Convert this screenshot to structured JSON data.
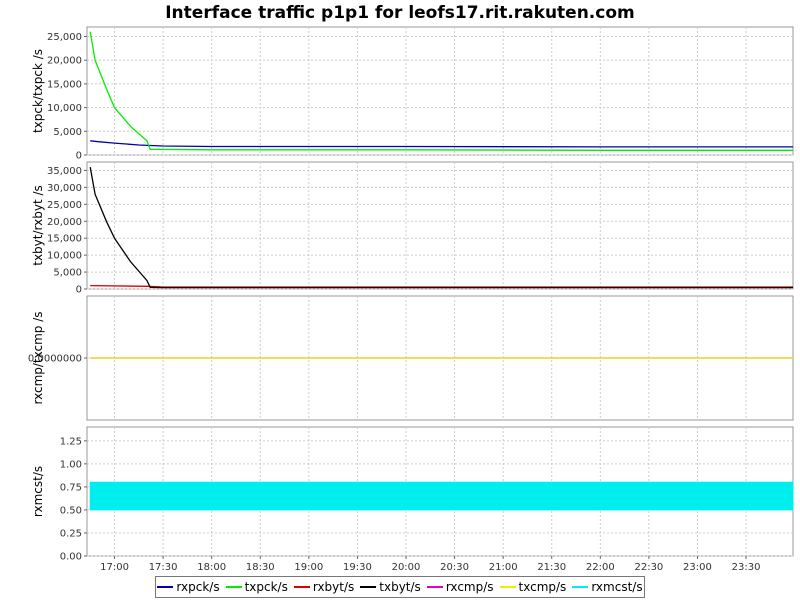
{
  "title": "Interface traffic p1p1 for leofs17.rit.rakuten.com",
  "colors": {
    "rxpck": "#0000aa",
    "txpck": "#00ee00",
    "rxbyt": "#dd0000",
    "txbyt": "#000000",
    "rxcmp": "#dd00dd",
    "txcmp": "#eeee00",
    "rxmcst": "#00eeee"
  },
  "chart_data": [
    {
      "type": "line",
      "ylabel": "txpck/txpck /s",
      "ylim": [
        0,
        27000
      ],
      "yticks": [
        0,
        5000,
        10000,
        15000,
        20000,
        25000
      ],
      "ytick_labels": [
        "0",
        "5,000",
        "10,000",
        "15,000",
        "20,000",
        "25,000"
      ],
      "grid": true,
      "series": [
        {
          "name": "rxpck/s",
          "points": [
            [
              "16:45",
              3000
            ],
            [
              "16:50",
              2800
            ],
            [
              "17:00",
              2500
            ],
            [
              "17:15",
              2100
            ],
            [
              "17:30",
              1900
            ],
            [
              "18:00",
              1800
            ],
            [
              "20:00",
              1800
            ],
            [
              "22:00",
              1700
            ],
            [
              "23:59",
              1700
            ]
          ]
        },
        {
          "name": "txpck/s",
          "points": [
            [
              "16:45",
              26000
            ],
            [
              "16:48",
              20000
            ],
            [
              "16:55",
              14000
            ],
            [
              "17:00",
              10000
            ],
            [
              "17:10",
              6000
            ],
            [
              "17:20",
              3000
            ],
            [
              "17:22",
              1200
            ],
            [
              "18:00",
              1100
            ],
            [
              "20:00",
              1100
            ],
            [
              "22:00",
              1000
            ],
            [
              "23:59",
              1000
            ]
          ]
        }
      ]
    },
    {
      "type": "line",
      "ylabel": "txbyt/rxbyt /s",
      "ylim": [
        0,
        37500
      ],
      "yticks": [
        0,
        5000,
        10000,
        15000,
        20000,
        25000,
        30000,
        35000
      ],
      "ytick_labels": [
        "0",
        "5,000",
        "10,000",
        "15,000",
        "20,000",
        "25,000",
        "30,000",
        "35,000"
      ],
      "grid": true,
      "series": [
        {
          "name": "rxbyt/s",
          "points": [
            [
              "16:45",
              1000
            ],
            [
              "17:20",
              800
            ],
            [
              "17:30",
              600
            ],
            [
              "20:00",
              600
            ],
            [
              "23:59",
              600
            ]
          ]
        },
        {
          "name": "txbyt/s",
          "points": [
            [
              "16:45",
              36000
            ],
            [
              "16:48",
              28000
            ],
            [
              "16:55",
              20000
            ],
            [
              "17:00",
              15000
            ],
            [
              "17:10",
              8000
            ],
            [
              "17:20",
              2500
            ],
            [
              "17:22",
              500
            ],
            [
              "17:30",
              400
            ],
            [
              "23:59",
              400
            ]
          ]
        }
      ]
    },
    {
      "type": "line",
      "ylabel": "rxcmp/txcmp /s",
      "yticks": [
        0
      ],
      "ytick_labels": [
        "0.0000000"
      ],
      "grid": true,
      "series": [
        {
          "name": "rxcmp/s",
          "points": [
            [
              "16:45",
              0
            ],
            [
              "23:59",
              0
            ]
          ]
        },
        {
          "name": "txcmp/s",
          "points": [
            [
              "16:45",
              0
            ],
            [
              "23:59",
              0
            ]
          ]
        }
      ]
    },
    {
      "type": "area",
      "ylabel": "rxmcst/s",
      "ylim": [
        0,
        1.4
      ],
      "yticks": [
        0,
        0.25,
        0.5,
        0.75,
        1.0,
        1.25
      ],
      "ytick_labels": [
        "0.00",
        "0.25",
        "0.50",
        "0.75",
        "1.00",
        "1.25"
      ],
      "grid": true,
      "series": [
        {
          "name": "rxmcst/s",
          "points": [
            [
              "16:45",
              0.5
            ],
            [
              "16:45",
              0.8
            ],
            [
              "23:59",
              0.8
            ],
            [
              "23:59",
              0.5
            ]
          ]
        }
      ]
    }
  ],
  "x_axis": {
    "type": "time",
    "range": [
      "16:43",
      "23:59"
    ],
    "ticks": [
      "17:00",
      "17:30",
      "18:00",
      "18:30",
      "19:00",
      "19:30",
      "20:00",
      "20:30",
      "21:00",
      "21:30",
      "22:00",
      "22:30",
      "23:00",
      "23:30"
    ]
  },
  "legend": [
    {
      "label": "rxpck/s",
      "color": "#0000aa"
    },
    {
      "label": "txpck/s",
      "color": "#00ee00"
    },
    {
      "label": "rxbyt/s",
      "color": "#dd0000"
    },
    {
      "label": "txbyt/s",
      "color": "#000000"
    },
    {
      "label": "rxcmp/s",
      "color": "#dd00dd"
    },
    {
      "label": "txcmp/s",
      "color": "#eeee00"
    },
    {
      "label": "rxmcst/s",
      "color": "#00eeee"
    }
  ]
}
